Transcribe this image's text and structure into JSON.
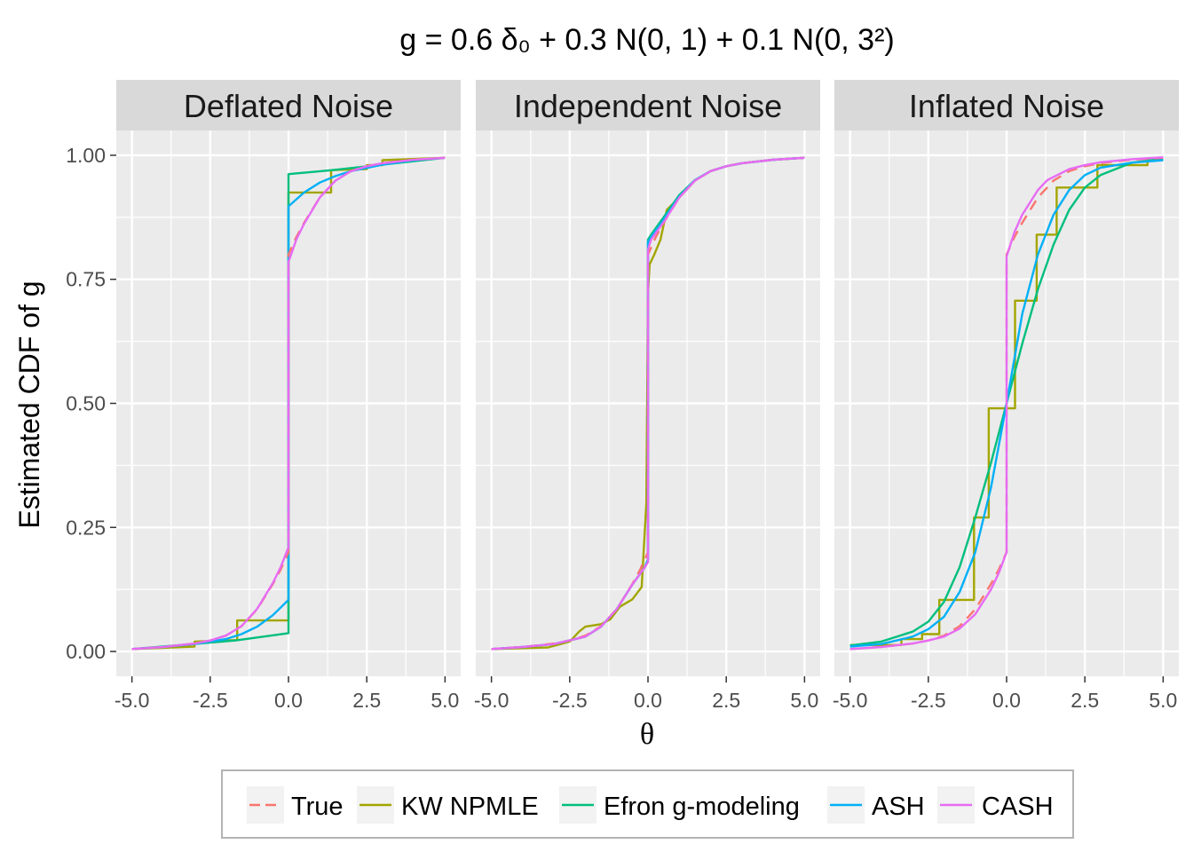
{
  "chart_data": {
    "type": "line",
    "title": "g = 0.6 δ₀ + 0.3 N(0, 1) + 0.1 N(0, 3²)",
    "xlabel": "θ",
    "ylabel": "Estimated CDF of g",
    "xlim": [
      -5.5,
      5.5
    ],
    "ylim": [
      -0.05,
      1.05
    ],
    "xticks": [
      -5,
      -2.5,
      0,
      2.5,
      5
    ],
    "xtick_labels": [
      "-5.0",
      "-2.5",
      "0.0",
      "2.5",
      "5.0"
    ],
    "yticks": [
      0,
      0.25,
      0.5,
      0.75,
      1
    ],
    "ytick_labels": [
      "0.00",
      "0.25",
      "0.50",
      "0.75",
      "1.00"
    ],
    "grid": true,
    "legend_position": "bottom",
    "legend": [
      {
        "name": "True",
        "color": "#F8766D",
        "dashed": true
      },
      {
        "name": "KW NPMLE",
        "color": "#A3A500"
      },
      {
        "name": "Efron g-modeling",
        "color": "#00BF7D"
      },
      {
        "name": "ASH",
        "color": "#00B0F6"
      },
      {
        "name": "CASH",
        "color": "#E76BF3"
      }
    ],
    "panels": [
      {
        "title": "Deflated Noise",
        "series": [
          {
            "name": "True",
            "x": [
              -5,
              -4,
              -3,
              -2.5,
              -2,
              -1.5,
              -1,
              -0.5,
              -0.25,
              0,
              0,
              0.25,
              0.5,
              1,
              1.5,
              2,
              2.5,
              3,
              4,
              5
            ],
            "y": [
              0.005,
              0.009,
              0.016,
              0.022,
              0.032,
              0.051,
              0.085,
              0.136,
              0.165,
              0.2,
              0.8,
              0.835,
              0.864,
              0.915,
              0.949,
              0.968,
              0.978,
              0.984,
              0.991,
              0.995
            ]
          },
          {
            "name": "KW NPMLE",
            "x": [
              -5,
              -3,
              -3,
              -1.64,
              -1.64,
              0,
              0,
              1.36,
              1.36,
              2.5,
              2.5,
              3,
              3,
              5
            ],
            "y": [
              0.005,
              0.01,
              0.02,
              0.023,
              0.0625,
              0.0625,
              0.925,
              0.925,
              0.97,
              0.972,
              0.98,
              0.98,
              0.99,
              0.995
            ]
          },
          {
            "name": "Efron g-modeling",
            "x": [
              -5,
              -1.7,
              0,
              0,
              1.4,
              5
            ],
            "y": [
              0.005,
              0.022,
              0.037,
              0.962,
              0.97,
              0.995
            ]
          },
          {
            "name": "ASH",
            "x": [
              -5,
              -4,
              -3,
              -2,
              -1.5,
              -1,
              -0.5,
              0,
              0,
              0.5,
              1,
              1.5,
              2,
              3,
              4,
              5
            ],
            "y": [
              0.005,
              0.009,
              0.015,
              0.025,
              0.035,
              0.05,
              0.073,
              0.104,
              0.897,
              0.925,
              0.945,
              0.958,
              0.968,
              0.981,
              0.99,
              0.995
            ]
          },
          {
            "name": "CASH",
            "x": [
              -5,
              -4,
              -3,
              -2.5,
              -2,
              -1.5,
              -1,
              -0.5,
              -0.25,
              0,
              0,
              0.25,
              0.5,
              1,
              1.5,
              2,
              2.5,
              3,
              4,
              5
            ],
            "y": [
              0.005,
              0.009,
              0.016,
              0.022,
              0.032,
              0.051,
              0.086,
              0.138,
              0.17,
              0.21,
              0.785,
              0.83,
              0.862,
              0.915,
              0.949,
              0.968,
              0.978,
              0.984,
              0.991,
              0.995
            ]
          }
        ]
      },
      {
        "title": "Independent Noise",
        "series": [
          {
            "name": "True",
            "x": [
              -5,
              -4,
              -3,
              -2.5,
              -2,
              -1.5,
              -1,
              -0.5,
              -0.25,
              0,
              0,
              0.25,
              0.5,
              1,
              1.5,
              2,
              2.5,
              3,
              4,
              5
            ],
            "y": [
              0.005,
              0.009,
              0.016,
              0.022,
              0.032,
              0.051,
              0.085,
              0.136,
              0.165,
              0.2,
              0.8,
              0.835,
              0.864,
              0.915,
              0.949,
              0.968,
              0.978,
              0.984,
              0.991,
              0.995
            ]
          },
          {
            "name": "KW NPMLE",
            "x": [
              -5,
              -3.2,
              -2.5,
              -2.2,
              -2,
              -1.5,
              -1.2,
              -0.9,
              -0.5,
              -0.2,
              -0.05,
              0,
              0.05,
              0.2,
              0.4,
              0.6,
              1,
              1.5,
              2,
              2.5,
              3,
              4,
              5
            ],
            "y": [
              0.005,
              0.008,
              0.02,
              0.04,
              0.05,
              0.055,
              0.065,
              0.09,
              0.105,
              0.13,
              0.3,
              0.72,
              0.78,
              0.8,
              0.83,
              0.89,
              0.915,
              0.949,
              0.968,
              0.978,
              0.984,
              0.991,
              0.995
            ]
          },
          {
            "name": "Efron g-modeling",
            "x": [
              -5,
              -4,
              -3,
              -2,
              -1.5,
              -1,
              -0.5,
              -0.1,
              0,
              0,
              0.1,
              0.5,
              1,
              1.5,
              2,
              2.5,
              3,
              4,
              5
            ],
            "y": [
              0.005,
              0.009,
              0.015,
              0.03,
              0.05,
              0.085,
              0.135,
              0.17,
              0.185,
              0.83,
              0.84,
              0.875,
              0.92,
              0.95,
              0.968,
              0.978,
              0.984,
              0.991,
              0.995
            ]
          },
          {
            "name": "ASH",
            "x": [
              -5,
              -4,
              -3,
              -2,
              -1.5,
              -1,
              -0.5,
              -0.1,
              0,
              0,
              0.1,
              0.5,
              1,
              1.5,
              2,
              2.5,
              3,
              4,
              5
            ],
            "y": [
              0.005,
              0.009,
              0.015,
              0.03,
              0.05,
              0.085,
              0.135,
              0.17,
              0.185,
              0.825,
              0.835,
              0.87,
              0.917,
              0.95,
              0.968,
              0.978,
              0.984,
              0.991,
              0.995
            ]
          },
          {
            "name": "CASH",
            "x": [
              -5,
              -4,
              -3,
              -2,
              -1.5,
              -1,
              -0.5,
              -0.1,
              0,
              0,
              0.1,
              0.5,
              1,
              1.5,
              2,
              2.5,
              3,
              4,
              5
            ],
            "y": [
              0.005,
              0.009,
              0.015,
              0.03,
              0.05,
              0.085,
              0.135,
              0.17,
              0.18,
              0.81,
              0.83,
              0.865,
              0.915,
              0.949,
              0.968,
              0.978,
              0.984,
              0.991,
              0.995
            ]
          }
        ]
      },
      {
        "title": "Inflated Noise",
        "series": [
          {
            "name": "True",
            "x": [
              -5,
              -4,
              -3,
              -2.5,
              -2,
              -1.5,
              -1,
              -0.5,
              -0.25,
              0,
              0,
              0.25,
              0.5,
              1,
              1.5,
              2,
              2.5,
              3,
              4,
              5
            ],
            "y": [
              0.005,
              0.009,
              0.016,
              0.022,
              0.032,
              0.051,
              0.085,
              0.136,
              0.165,
              0.2,
              0.8,
              0.835,
              0.864,
              0.915,
              0.949,
              0.968,
              0.978,
              0.984,
              0.991,
              0.995
            ]
          },
          {
            "name": "KW NPMLE",
            "x": [
              -5,
              -3.36,
              -3.36,
              -2.7,
              -2.7,
              -2.15,
              -2.15,
              -1.04,
              -1.04,
              -0.57,
              -0.57,
              0.27,
              0.27,
              0.96,
              0.96,
              1.6,
              1.6,
              2.9,
              2.9,
              4.5,
              4.5,
              5
            ],
            "y": [
              0.013,
              0.013,
              0.025,
              0.025,
              0.035,
              0.035,
              0.104,
              0.104,
              0.27,
              0.27,
              0.49,
              0.49,
              0.707,
              0.707,
              0.84,
              0.84,
              0.935,
              0.935,
              0.98,
              0.98,
              0.99,
              0.99
            ]
          },
          {
            "name": "Efron g-modeling",
            "x": [
              -5,
              -4,
              -3,
              -2.5,
              -2,
              -1.5,
              -1,
              -0.5,
              0,
              0.5,
              1,
              1.5,
              2,
              2.5,
              3,
              4,
              5
            ],
            "y": [
              0.012,
              0.02,
              0.04,
              0.06,
              0.1,
              0.17,
              0.27,
              0.38,
              0.5,
              0.62,
              0.73,
              0.82,
              0.89,
              0.935,
              0.96,
              0.985,
              0.993
            ]
          },
          {
            "name": "ASH",
            "x": [
              -5,
              -4,
              -3,
              -2.5,
              -2,
              -1.5,
              -1,
              -0.5,
              0,
              0.5,
              1,
              1.5,
              2,
              2.5,
              3,
              4,
              5
            ],
            "y": [
              0.01,
              0.015,
              0.03,
              0.045,
              0.07,
              0.12,
              0.2,
              0.33,
              0.5,
              0.68,
              0.8,
              0.88,
              0.93,
              0.96,
              0.975,
              0.985,
              0.99
            ]
          },
          {
            "name": "CASH",
            "x": [
              -5,
              -4,
              -3,
              -2.5,
              -2,
              -1.5,
              -1,
              -0.5,
              -0.25,
              0,
              0,
              0.25,
              0.5,
              1,
              1.3,
              2,
              2.5,
              3,
              4,
              5
            ],
            "y": [
              0.005,
              0.009,
              0.016,
              0.022,
              0.03,
              0.046,
              0.075,
              0.125,
              0.158,
              0.2,
              0.796,
              0.845,
              0.88,
              0.93,
              0.95,
              0.972,
              0.98,
              0.986,
              0.992,
              0.996
            ]
          }
        ]
      }
    ]
  }
}
